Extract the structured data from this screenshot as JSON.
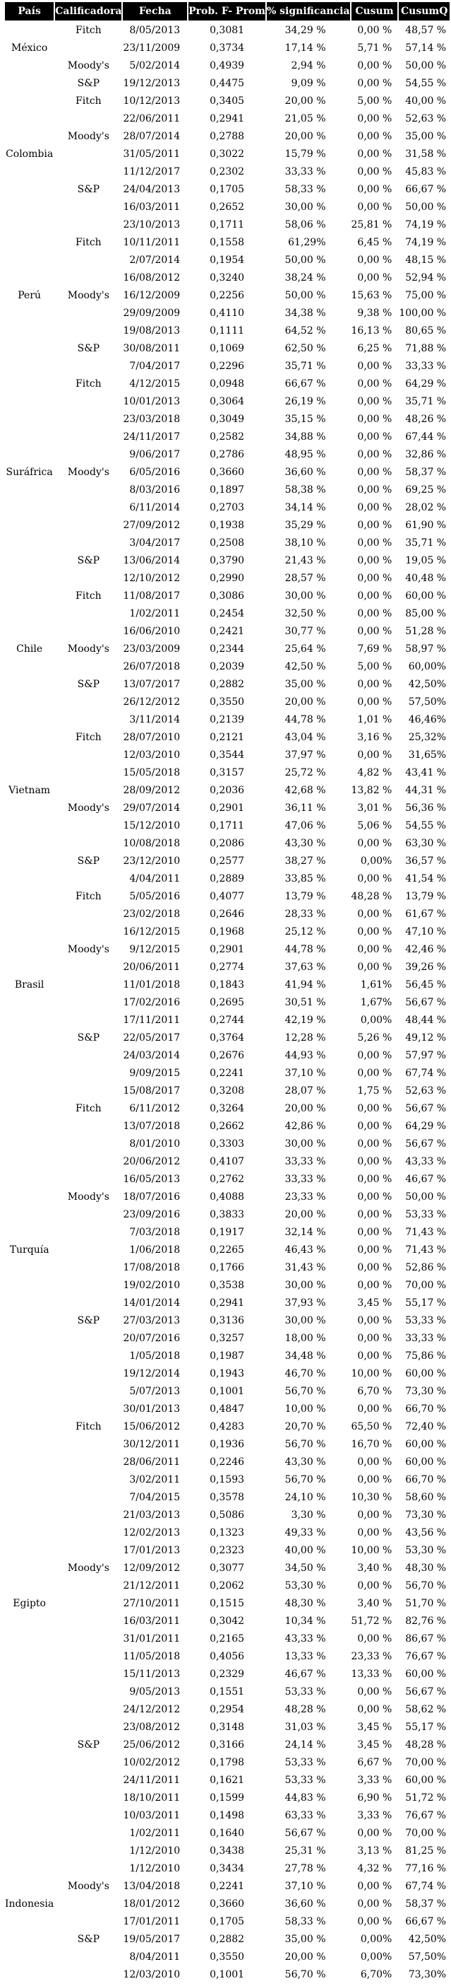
{
  "colors": {
    "header_bg": "#000000",
    "header_text": "#ffffff",
    "body_text": "#000000",
    "page_bg": "#ffffff"
  },
  "table": {
    "headers": [
      "País",
      "Calificadora",
      "Fecha",
      "Prob. F- Prom",
      "% significancia",
      "Cusum",
      "CusumQ"
    ],
    "rows": [
      [
        "",
        "Fitch",
        "8/05/2013",
        "0,3081",
        "34,29 %",
        "0,00 %",
        "48,57 %"
      ],
      [
        "México",
        "",
        "23/11/2009",
        "0,3734",
        "17,14 %",
        "5,71 %",
        "57,14 %"
      ],
      [
        "",
        "Moody's",
        "5/02/2014",
        "0,4939",
        "2,94 %",
        "0,00 %",
        "50,00 %"
      ],
      [
        "",
        "S&P",
        "19/12/2013",
        "0,4475",
        "9,09 %",
        "0,00 %",
        "54,55 %"
      ],
      [
        "",
        "Fitch",
        "10/12/2013",
        "0,3405",
        "20,00 %",
        "5,00 %",
        "40,00 %"
      ],
      [
        "",
        "",
        "22/06/2011",
        "0,2941",
        "21,05 %",
        "0,00 %",
        "52,63 %"
      ],
      [
        "",
        "Moody's",
        "28/07/2014",
        "0,2788",
        "20,00 %",
        "0,00 %",
        "35,00 %"
      ],
      [
        "Colombia",
        "",
        "31/05/2011",
        "0,3022",
        "15,79 %",
        "0,00 %",
        "31,58 %"
      ],
      [
        "",
        "",
        "11/12/2017",
        "0,2302",
        "33,33 %",
        "0,00 %",
        "45,83 %"
      ],
      [
        "",
        "S&P",
        "24/04/2013",
        "0,1705",
        "58,33 %",
        "0,00 %",
        "66,67 %"
      ],
      [
        "",
        "",
        "16/03/2011",
        "0,2652",
        "30,00 %",
        "0,00 %",
        "50,00 %"
      ],
      [
        "",
        "",
        "23/10/2013",
        "0,1711",
        "58,06 %",
        "25,81 %",
        "74,19 %"
      ],
      [
        "",
        "Fitch",
        "10/11/2011",
        "0,1558",
        "61,29%",
        "6,45 %",
        "74,19 %"
      ],
      [
        "",
        "",
        "2/07/2014",
        "0,1954",
        "50,00 %",
        "0,00 %",
        "48,15 %"
      ],
      [
        "",
        "",
        "16/08/2012",
        "0,3240",
        "38,24 %",
        "0,00 %",
        "52,94 %"
      ],
      [
        "Perú",
        "Moody's",
        "16/12/2009",
        "0,2256",
        "50,00 %",
        "15,63 %",
        "75,00 %"
      ],
      [
        "",
        "",
        "29/09/2009",
        "0,4110",
        "34,38 %",
        "9,38 %",
        "100,00 %"
      ],
      [
        "",
        "",
        "19/08/2013",
        "0,1111",
        "64,52 %",
        "16,13 %",
        "80,65 %"
      ],
      [
        "",
        "S&P",
        "30/08/2011",
        "0,1069",
        "62,50 %",
        "6,25 %",
        "71,88 %"
      ],
      [
        "",
        "",
        "7/04/2017",
        "0,2296",
        "35,71 %",
        "0,00 %",
        "33,33 %"
      ],
      [
        "",
        "Fitch",
        "4/12/2015",
        "0,0948",
        "66,67 %",
        "0,00 %",
        "64,29 %"
      ],
      [
        "",
        "",
        "10/01/2013",
        "0,3064",
        "26,19 %",
        "0,00 %",
        "35,71 %"
      ],
      [
        "",
        "",
        "23/03/2018",
        "0,3049",
        "35,15 %",
        "0,00 %",
        "48,26 %"
      ],
      [
        "",
        "",
        "24/11/2017",
        "0,2582",
        "34,88 %",
        "0,00 %",
        "67,44 %"
      ],
      [
        "",
        "",
        "9/06/2017",
        "0,2786",
        "48,95 %",
        "0,00 %",
        "32,86 %"
      ],
      [
        "Suráfrica",
        "Moody's",
        "6/05/2016",
        "0,3660",
        "36,60 %",
        "0,00 %",
        "58,37 %"
      ],
      [
        "",
        "",
        "8/03/2016",
        "0,1897",
        "58,38 %",
        "0,00 %",
        "69,25 %"
      ],
      [
        "",
        "",
        "6/11/2014",
        "0,2703",
        "34,14 %",
        "0,00 %",
        "28,02 %"
      ],
      [
        "",
        "",
        "27/09/2012",
        "0,1938",
        "35,29 %",
        "0,00 %",
        "61,90 %"
      ],
      [
        "",
        "",
        "3/04/2017",
        "0,2508",
        "38,10 %",
        "0,00 %",
        "35,71 %"
      ],
      [
        "",
        "S&P",
        "13/06/2014",
        "0,3790",
        "21,43 %",
        "0,00 %",
        "19,05 %"
      ],
      [
        "",
        "",
        "12/10/2012",
        "0,2990",
        "28,57 %",
        "0,00 %",
        "40,48 %"
      ],
      [
        "",
        "Fitch",
        "11/08/2017",
        "0,3086",
        "30,00 %",
        "0,00 %",
        "60,00 %"
      ],
      [
        "",
        "",
        "1/02/2011",
        "0,2454",
        "32,50 %",
        "0,00 %",
        "85,00 %"
      ],
      [
        "",
        "",
        "16/06/2010",
        "0,2421",
        "30,77 %",
        "0,00 %",
        "51,28 %"
      ],
      [
        "Chile",
        "Moody's",
        "23/03/2009",
        "0,2344",
        "25,64 %",
        "7,69 %",
        "58,97 %"
      ],
      [
        "",
        "",
        "26/07/2018",
        "0,2039",
        "42,50 %",
        "5,00 %",
        "60,00%"
      ],
      [
        "",
        "S&P",
        "13/07/2017",
        "0,2882",
        "35,00 %",
        "0,00 %",
        "42,50%"
      ],
      [
        "",
        "",
        "26/12/2012",
        "0,3550",
        "20,00 %",
        "0,00 %",
        "57,50%"
      ],
      [
        "",
        "",
        "3/11/2014",
        "0,2139",
        "44,78 %",
        "1,01 %",
        "46,46%"
      ],
      [
        "",
        "Fitch",
        "28/07/2010",
        "0,2121",
        "43,04 %",
        "3,16 %",
        "25,32%"
      ],
      [
        "",
        "",
        "12/03/2010",
        "0,3544",
        "37,97 %",
        "0,00 %",
        "31,65%"
      ],
      [
        "",
        "",
        "15/05/2018",
        "0,3157",
        "25,72 %",
        "4,82 %",
        "43,41 %"
      ],
      [
        "Vietnam",
        "",
        "28/09/2012",
        "0,2036",
        "42,68 %",
        "13,82 %",
        "44,31 %"
      ],
      [
        "",
        "Moody's",
        "29/07/2014",
        "0,2901",
        "36,11 %",
        "3,01 %",
        "56,36 %"
      ],
      [
        "",
        "",
        "15/12/2010",
        "0,1711",
        "47,06 %",
        "5,06 %",
        "54,55 %"
      ],
      [
        "",
        "",
        "10/08/2018",
        "0,2086",
        "43,30 %",
        "0,00 %",
        "63,30 %"
      ],
      [
        "",
        "S&P",
        "23/12/2010",
        "0,2577",
        "38,27 %",
        "0,00%",
        "36,57 %"
      ],
      [
        "",
        "",
        "4/04/2011",
        "0,2889",
        "33,85 %",
        "0,00 %",
        "41,54 %"
      ],
      [
        "",
        "Fitch",
        "5/05/2016",
        "0,4077",
        "13,79 %",
        "48,28 %",
        "13,79 %"
      ],
      [
        "",
        "",
        "23/02/2018",
        "0,2646",
        "28,33 %",
        "0,00 %",
        "61,67 %"
      ],
      [
        "",
        "",
        "16/12/2015",
        "0,1968",
        "25,12 %",
        "0,00 %",
        "47,10 %"
      ],
      [
        "",
        "Moody's",
        "9/12/2015",
        "0,2901",
        "44,78 %",
        "0,00 %",
        "42,46 %"
      ],
      [
        "",
        "",
        "20/06/2011",
        "0,2774",
        "37,63 %",
        "0,00 %",
        "39,26 %"
      ],
      [
        "Brasil",
        "",
        "11/01/2018",
        "0,1843",
        "41,94 %",
        "1,61%",
        "56,45 %"
      ],
      [
        "",
        "",
        "17/02/2016",
        "0,2695",
        "30,51 %",
        "1,67%",
        "56,67 %"
      ],
      [
        "",
        "",
        "17/11/2011",
        "0,2744",
        "42,19 %",
        "0,00%",
        "48,44 %"
      ],
      [
        "",
        "S&P",
        "22/05/2017",
        "0,3764",
        "12,28 %",
        "5,26 %",
        "49,12 %"
      ],
      [
        "",
        "",
        "24/03/2014",
        "0,2676",
        "44,93 %",
        "0,00 %",
        "57,97 %"
      ],
      [
        "",
        "",
        "9/09/2015",
        "0,2241",
        "37,10 %",
        "0,00 %",
        "67,74 %"
      ],
      [
        "",
        "",
        "15/08/2017",
        "0,3208",
        "28,07 %",
        "1,75 %",
        "52,63 %"
      ],
      [
        "",
        "Fitch",
        "6/11/2012",
        "0,3264",
        "20,00 %",
        "0,00 %",
        "56,67 %"
      ],
      [
        "",
        "",
        "13/07/2018",
        "0,2662",
        "42,86 %",
        "0,00 %",
        "64,29 %"
      ],
      [
        "",
        "",
        "8/01/2010",
        "0,3303",
        "30,00 %",
        "0,00 %",
        "56,67 %"
      ],
      [
        "",
        "",
        "20/06/2012",
        "0,4107",
        "33,33 %",
        "0,00 %",
        "43,33 %"
      ],
      [
        "",
        "",
        "16/05/2013",
        "0,2762",
        "33,33 %",
        "0,00 %",
        "46,67 %"
      ],
      [
        "",
        "Moody's",
        "18/07/2016",
        "0,4088",
        "23,33 %",
        "0,00 %",
        "50,00 %"
      ],
      [
        "",
        "",
        "23/09/2016",
        "0,3833",
        "20,00 %",
        "0,00 %",
        "53,33 %"
      ],
      [
        "",
        "",
        "7/03/2018",
        "0,1917",
        "32,14 %",
        "0,00 %",
        "71,43 %"
      ],
      [
        "Turquía",
        "",
        "1/06/2018",
        "0,2265",
        "46,43 %",
        "0,00 %",
        "71,43 %"
      ],
      [
        "",
        "",
        "17/08/2018",
        "0,1766",
        "31,43 %",
        "0,00 %",
        "52,86 %"
      ],
      [
        "",
        "",
        "19/02/2010",
        "0,3538",
        "30,00 %",
        "0,00 %",
        "70,00 %"
      ],
      [
        "",
        "",
        "14/01/2014",
        "0,2941",
        "37,93 %",
        "3,45 %",
        "55,17 %"
      ],
      [
        "",
        "S&P",
        "27/03/2013",
        "0,3136",
        "30,00 %",
        "0,00 %",
        "53,33 %"
      ],
      [
        "",
        "",
        "20/07/2016",
        "0,3257",
        "18,00 %",
        "0,00 %",
        "33,33 %"
      ],
      [
        "",
        "",
        "1/05/2018",
        "0,1987",
        "34,48 %",
        "0,00 %",
        "75,86 %"
      ],
      [
        "",
        "",
        "19/12/2014",
        "0,1943",
        "46,70 %",
        "10,00 %",
        "60,00 %"
      ],
      [
        "",
        "",
        "5/07/2013",
        "0,1001",
        "56,70 %",
        "6,70 %",
        "73,30 %"
      ],
      [
        "",
        "",
        "30/01/2013",
        "0,4847",
        "10,00 %",
        "0,00 %",
        "66,70 %"
      ],
      [
        "",
        "Fitch",
        "15/06/2012",
        "0,4283",
        "20,70 %",
        "65,50 %",
        "72,40 %"
      ],
      [
        "",
        "",
        "30/12/2011",
        "0,1936",
        "56,70 %",
        "16,70 %",
        "60,00 %"
      ],
      [
        "",
        "",
        "28/06/2011",
        "0,2246",
        "43,30 %",
        "0,00 %",
        "60,00 %"
      ],
      [
        "",
        "",
        "3/02/2011",
        "0,1593",
        "56,70 %",
        "0,00 %",
        "66,70 %"
      ],
      [
        "",
        "",
        "7/04/2015",
        "0,3578",
        "24,10 %",
        "10,30 %",
        "58,60 %"
      ],
      [
        "",
        "",
        "21/03/2013",
        "0,5086",
        "3,30 %",
        "0,00 %",
        "73,30 %"
      ],
      [
        "",
        "",
        "12/02/2013",
        "0,1323",
        "49,33 %",
        "0,00 %",
        "43,56 %"
      ],
      [
        "",
        "",
        "17/01/2013",
        "0,2323",
        "40,00 %",
        "10,00 %",
        "53,30 %"
      ],
      [
        "",
        "Moody's",
        "12/09/2012",
        "0,3077",
        "34,50 %",
        "3,40 %",
        "48,30 %"
      ],
      [
        "",
        "",
        "21/12/2011",
        "0,2062",
        "53,30 %",
        "0,00 %",
        "56,70 %"
      ],
      [
        "Egipto",
        "",
        "27/10/2011",
        "0,1515",
        "48,30 %",
        "3,40 %",
        "51,70 %"
      ],
      [
        "",
        "",
        "16/03/2011",
        "0,3042",
        "10,34 %",
        "51,72 %",
        "82,76 %"
      ],
      [
        "",
        "",
        "31/01/2011",
        "0,2165",
        "43,33 %",
        "0,00 %",
        "86,67 %"
      ],
      [
        "",
        "",
        "11/05/2018",
        "0,4056",
        "13,33 %",
        "23,33 %",
        "76,67 %"
      ],
      [
        "",
        "",
        "15/11/2013",
        "0,2329",
        "46,67 %",
        "13,33 %",
        "60,00 %"
      ],
      [
        "",
        "",
        "9/05/2013",
        "0,1551",
        "53,33 %",
        "0,00 %",
        "56,67 %"
      ],
      [
        "",
        "",
        "24/12/2012",
        "0,2954",
        "48,28 %",
        "0,00 %",
        "58,62 %"
      ],
      [
        "",
        "",
        "23/08/2012",
        "0,3148",
        "31,03 %",
        "3,45 %",
        "55,17 %"
      ],
      [
        "",
        "S&P",
        "25/06/2012",
        "0,3166",
        "24,14 %",
        "3,45 %",
        "48,28 %"
      ],
      [
        "",
        "",
        "10/02/2012",
        "0,1798",
        "53,33 %",
        "6,67 %",
        "70,00 %"
      ],
      [
        "",
        "",
        "24/11/2011",
        "0,1621",
        "53,33 %",
        "3,33 %",
        "60,00 %"
      ],
      [
        "",
        "",
        "18/10/2011",
        "0,1599",
        "44,83 %",
        "6,90 %",
        "51,72 %"
      ],
      [
        "",
        "",
        "10/03/2011",
        "0,1498",
        "63,33 %",
        "3,33 %",
        "76,67 %"
      ],
      [
        "",
        "",
        "1/02/2011",
        "0,1640",
        "56,67 %",
        "0,00 %",
        "70,00 %"
      ],
      [
        "",
        "",
        "1/12/2010",
        "0,3438",
        "25,31 %",
        "3,13 %",
        "81,25 %"
      ],
      [
        "",
        "",
        "1/12/2010",
        "0,3434",
        "27,78 %",
        "4,32 %",
        "77,16 %"
      ],
      [
        "",
        "Moody's",
        "13/04/2018",
        "0,2241",
        "37,10 %",
        "0,00 %",
        "67,74 %"
      ],
      [
        "Indonesia",
        "",
        "18/01/2012",
        "0,3660",
        "36,60 %",
        "0,00 %",
        "58,37 %"
      ],
      [
        "",
        "",
        "17/01/2011",
        "0,1705",
        "58,33 %",
        "0,00 %",
        "66,67 %"
      ],
      [
        "",
        "S&P",
        "19/05/2017",
        "0,2882",
        "35,00 %",
        "0,00%",
        "42,50%"
      ],
      [
        "",
        "",
        "8/04/2011",
        "0,3550",
        "20,00 %",
        "0,00%",
        "57,50%"
      ],
      [
        "",
        "",
        "12/03/2010",
        "0,1001",
        "56,70 %",
        "6,70%",
        "73,30%"
      ]
    ]
  }
}
